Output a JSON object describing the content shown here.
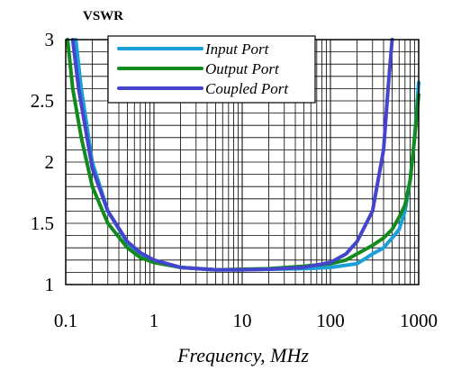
{
  "chart_data": {
    "type": "line",
    "ylabel": "VSWR",
    "xlabel": "Frequency, MHz",
    "x_scale": "log",
    "xlim": [
      0.1,
      1000
    ],
    "ylim": [
      1,
      3
    ],
    "x_ticks": [
      "0.1",
      "1",
      "10",
      "100",
      "1000"
    ],
    "y_ticks": [
      "1",
      "1.5",
      "2",
      "2.5",
      "3"
    ],
    "grid": true,
    "legend_position": "top-center",
    "series": [
      {
        "name": "Input Port",
        "color": "#1a9fd8",
        "points": [
          [
            0.13,
            3.0
          ],
          [
            0.15,
            2.6
          ],
          [
            0.2,
            2.0
          ],
          [
            0.3,
            1.6
          ],
          [
            0.5,
            1.34
          ],
          [
            0.7,
            1.25
          ],
          [
            1,
            1.19
          ],
          [
            2,
            1.14
          ],
          [
            5,
            1.12
          ],
          [
            10,
            1.12
          ],
          [
            20,
            1.125
          ],
          [
            50,
            1.13
          ],
          [
            100,
            1.14
          ],
          [
            200,
            1.17
          ],
          [
            300,
            1.25
          ],
          [
            400,
            1.3
          ],
          [
            500,
            1.38
          ],
          [
            600,
            1.45
          ],
          [
            700,
            1.6
          ],
          [
            800,
            1.85
          ],
          [
            900,
            2.2
          ],
          [
            1000,
            2.65
          ]
        ]
      },
      {
        "name": "Output Port",
        "color": "#138a1e",
        "points": [
          [
            0.105,
            3.0
          ],
          [
            0.12,
            2.6
          ],
          [
            0.15,
            2.2
          ],
          [
            0.2,
            1.8
          ],
          [
            0.3,
            1.5
          ],
          [
            0.5,
            1.3
          ],
          [
            0.7,
            1.22
          ],
          [
            1,
            1.18
          ],
          [
            2,
            1.14
          ],
          [
            5,
            1.12
          ],
          [
            10,
            1.125
          ],
          [
            20,
            1.13
          ],
          [
            50,
            1.15
          ],
          [
            100,
            1.17
          ],
          [
            150,
            1.2
          ],
          [
            200,
            1.25
          ],
          [
            300,
            1.32
          ],
          [
            400,
            1.38
          ],
          [
            500,
            1.45
          ],
          [
            600,
            1.55
          ],
          [
            700,
            1.65
          ],
          [
            800,
            1.85
          ],
          [
            900,
            2.2
          ],
          [
            1000,
            2.55
          ]
        ]
      },
      {
        "name": "Coupled Port",
        "color": "#4444cc",
        "points": [
          [
            0.12,
            3.0
          ],
          [
            0.14,
            2.6
          ],
          [
            0.2,
            1.95
          ],
          [
            0.3,
            1.6
          ],
          [
            0.5,
            1.35
          ],
          [
            0.7,
            1.26
          ],
          [
            1,
            1.2
          ],
          [
            2,
            1.14
          ],
          [
            5,
            1.12
          ],
          [
            10,
            1.12
          ],
          [
            20,
            1.125
          ],
          [
            50,
            1.14
          ],
          [
            100,
            1.18
          ],
          [
            150,
            1.25
          ],
          [
            200,
            1.35
          ],
          [
            300,
            1.6
          ],
          [
            400,
            2.1
          ],
          [
            450,
            2.6
          ],
          [
            500,
            3.0
          ]
        ]
      }
    ]
  }
}
